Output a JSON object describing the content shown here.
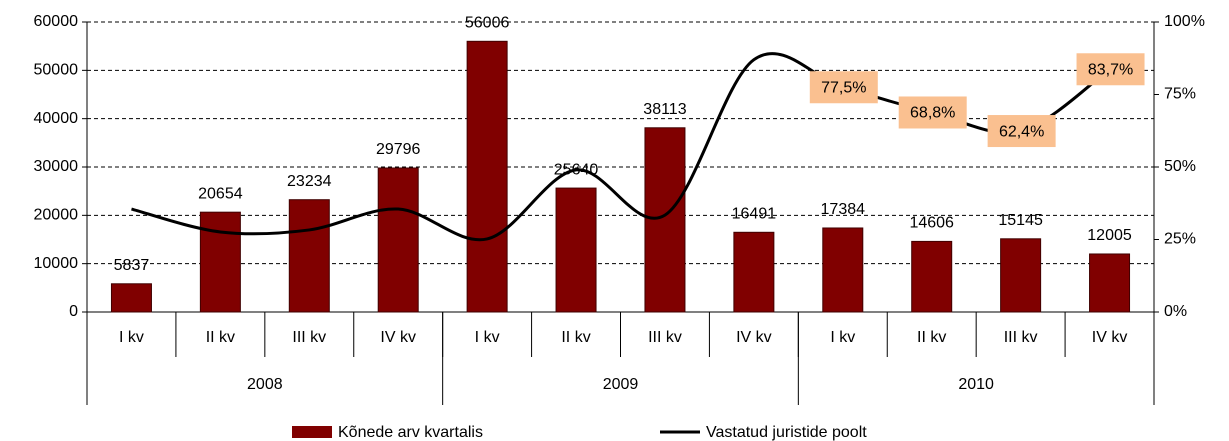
{
  "chart_data": {
    "type": "bar_line",
    "categories": [
      "I kv",
      "II kv",
      "III kv",
      "IV kv",
      "I kv",
      "II kv",
      "III kv",
      "IV kv",
      "I kv",
      "II kv",
      "III kv",
      "IV kv"
    ],
    "groups": [
      {
        "label": "2008",
        "span": 4
      },
      {
        "label": "2009",
        "span": 4
      },
      {
        "label": "2010",
        "span": 4
      }
    ],
    "series": [
      {
        "name": "Kõnede arv kvartalis",
        "type": "bar",
        "color": "#800000",
        "values": [
          5837,
          20654,
          23234,
          29796,
          56006,
          25640,
          38113,
          16491,
          17384,
          14606,
          15145,
          12005
        ]
      },
      {
        "name": "Vastatud juristide poolt",
        "type": "line",
        "axis": "y2",
        "color": "#000000",
        "values": [
          35.5,
          27.6,
          28.3,
          35.5,
          25.2,
          49,
          33.4,
          87,
          77.5,
          68.8,
          62.4,
          83.7
        ],
        "value_labels": [
          null,
          null,
          null,
          null,
          null,
          null,
          null,
          null,
          "77,5%",
          "68,8%",
          "62,4%",
          "83,7%"
        ]
      }
    ],
    "ylim": [
      0,
      60000
    ],
    "yticks": [
      0,
      10000,
      20000,
      30000,
      40000,
      50000,
      60000
    ],
    "y2lim": [
      0,
      100
    ],
    "y2ticks": [
      {
        "value": 0,
        "label": "0%"
      },
      {
        "value": 25,
        "label": "25%"
      },
      {
        "value": 50,
        "label": "50%"
      },
      {
        "value": 75,
        "label": "75%"
      },
      {
        "value": 100,
        "label": "100%"
      }
    ],
    "grid": true,
    "legend": "bottom"
  }
}
